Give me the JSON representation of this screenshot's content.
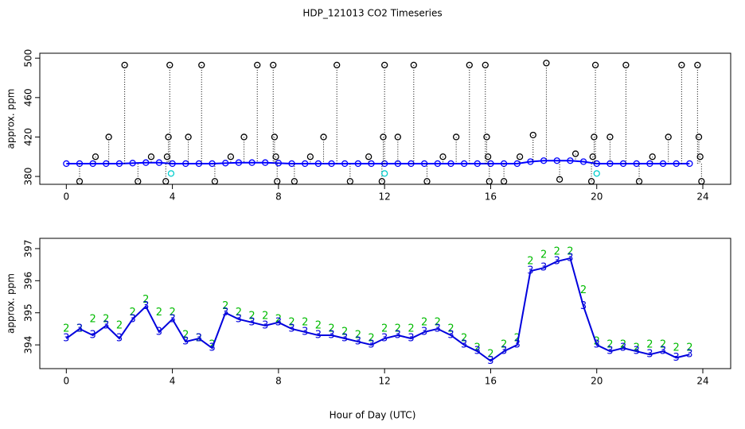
{
  "chart_data": [
    {
      "type": "scatter",
      "title": "HDP_121013  CO2 Timeseries",
      "y_label": "approx. ppm",
      "xlim": [
        -1,
        25.05
      ],
      "xticks": [
        0,
        4,
        8,
        12,
        16,
        20,
        24
      ],
      "ylim": [
        372,
        505
      ],
      "yticks": [
        380,
        420,
        460,
        500
      ],
      "x": [
        0,
        0.5,
        1,
        1.5,
        2,
        2.5,
        3,
        3.5,
        4,
        4.5,
        5,
        5.5,
        6,
        6.5,
        7,
        7.5,
        8,
        8.5,
        9,
        9.5,
        10,
        10.5,
        11,
        11.5,
        12,
        12.5,
        13,
        13.5,
        14,
        14.5,
        15,
        15.5,
        16,
        16.5,
        17,
        17.5,
        18,
        18.5,
        19,
        19.5,
        20,
        20.5,
        21,
        21.5,
        22,
        22.5,
        23,
        23.5
      ],
      "series": [
        {
          "color": "#0000ff",
          "style": "line-points",
          "marker": "o",
          "values": [
            393,
            393,
            393,
            393,
            393,
            393.5,
            394,
            394,
            393,
            393,
            393,
            393,
            393.5,
            394,
            394,
            394,
            393.5,
            393,
            393,
            393,
            393,
            393,
            393,
            393,
            393,
            393,
            393,
            393,
            393,
            393,
            393,
            393,
            393,
            393,
            393,
            395,
            396,
            396,
            396,
            395,
            393,
            393,
            393,
            393,
            393,
            393,
            393,
            393
          ]
        },
        {
          "color": "#000000",
          "style": "points-drop",
          "marker": "o",
          "x": [
            0.5,
            1.1,
            1.6,
            2.2,
            2.7,
            3.2,
            3.75,
            3.8,
            3.85,
            3.9,
            4.6,
            5.1,
            5.6,
            6.2,
            6.7,
            7.2,
            7.8,
            7.85,
            7.9,
            7.95,
            8.6,
            9.2,
            9.7,
            10.2,
            10.7,
            11.4,
            11.9,
            11.95,
            12.0,
            12.5,
            13.1,
            13.6,
            14.2,
            14.7,
            15.2,
            15.8,
            15.85,
            15.9,
            15.95,
            16.5,
            17.1,
            17.6,
            18.1,
            18.6,
            19.2,
            19.8,
            19.85,
            19.9,
            19.95,
            20.5,
            21.1,
            21.6,
            22.1,
            22.7,
            23.2,
            23.8,
            23.85,
            23.9,
            23.95
          ],
          "values": [
            375,
            400,
            420,
            493,
            375,
            400,
            375,
            400,
            420,
            493,
            420,
            493,
            375,
            400,
            420,
            493,
            493,
            420,
            400,
            375,
            375,
            400,
            420,
            493,
            375,
            400,
            375,
            420,
            493,
            420,
            493,
            375,
            400,
            420,
            493,
            493,
            420,
            400,
            375,
            375,
            400,
            422,
            495,
            377,
            403,
            375,
            400,
            420,
            493,
            420,
            493,
            375,
            400,
            420,
            493,
            493,
            420,
            400,
            375
          ]
        },
        {
          "color": "#00cccc",
          "style": "points",
          "marker": "o",
          "x": [
            3.95,
            12.0,
            20.0
          ],
          "values": [
            383,
            383,
            383
          ]
        }
      ]
    },
    {
      "type": "scatter",
      "y_label": "approx. ppm",
      "x_label": "Hour of Day (UTC)",
      "xlim": [
        -1,
        25.05
      ],
      "xticks": [
        0,
        4,
        8,
        12,
        16,
        20,
        24
      ],
      "ylim": [
        393.26,
        397.32
      ],
      "yticks": [
        394,
        395,
        396,
        397
      ],
      "x": [
        0,
        0.5,
        1,
        1.5,
        2,
        2.5,
        3,
        3.5,
        4,
        4.5,
        5,
        5.5,
        6,
        6.5,
        7,
        7.5,
        8,
        8.5,
        9,
        9.5,
        10,
        10.5,
        11,
        11.5,
        12,
        12.5,
        13,
        13.5,
        14,
        14.5,
        15,
        15.5,
        16,
        16.5,
        17,
        17.5,
        18,
        18.5,
        19,
        19.5,
        20,
        20.5,
        21,
        21.5,
        22,
        22.5,
        23,
        23.5
      ],
      "series": [
        {
          "color": "#00bb00",
          "style": "points",
          "marker": "2",
          "values": [
            394.5,
            394.5,
            394.8,
            394.8,
            394.6,
            395.0,
            395.4,
            395.0,
            395.0,
            394.3,
            394.2,
            394.0,
            395.2,
            395.0,
            394.9,
            394.9,
            394.8,
            394.7,
            394.7,
            394.6,
            394.5,
            394.4,
            394.3,
            394.2,
            394.5,
            394.5,
            394.5,
            394.7,
            394.7,
            394.5,
            394.2,
            393.9,
            393.7,
            394.0,
            394.2,
            396.6,
            396.8,
            396.9,
            396.9,
            395.7,
            394.1,
            394.0,
            394.0,
            393.9,
            394.0,
            394.0,
            393.9,
            393.9
          ]
        },
        {
          "color": "#0000dd",
          "style": "line-points",
          "marker": "3",
          "values": [
            394.2,
            394.5,
            394.3,
            394.6,
            394.2,
            394.8,
            395.2,
            394.4,
            394.8,
            394.1,
            394.2,
            393.9,
            395.0,
            394.8,
            394.7,
            394.6,
            394.7,
            394.5,
            394.4,
            394.3,
            394.3,
            394.2,
            394.1,
            394.0,
            394.2,
            394.3,
            394.2,
            394.4,
            394.5,
            394.3,
            394.0,
            393.8,
            393.5,
            393.8,
            394.0,
            396.3,
            396.4,
            396.6,
            396.7,
            395.2,
            394.0,
            393.8,
            393.9,
            393.8,
            393.7,
            393.8,
            393.6,
            393.7
          ]
        }
      ]
    }
  ]
}
